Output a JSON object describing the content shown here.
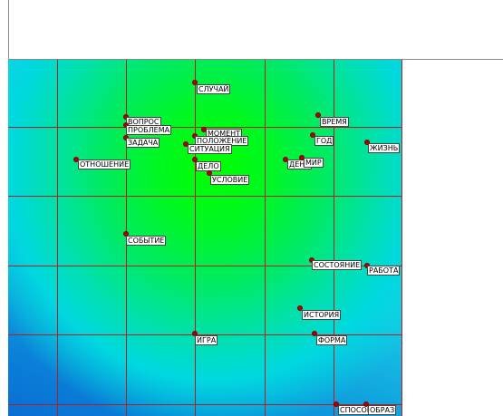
{
  "map": {
    "words": [
      {
        "text": "СЛУЧАЙ"
      },
      {
        "text": "ВОПРОС"
      },
      {
        "text": "ПРОБЛЕМА"
      },
      {
        "text": "ЗАДАЧА"
      },
      {
        "text": "МОМЕНТ"
      },
      {
        "text": "ПОЛОЖЕНИЕ"
      },
      {
        "text": "СИТУАЦИЯ"
      },
      {
        "text": "ВРЕМЯ"
      },
      {
        "text": "ГОД"
      },
      {
        "text": "ЖИЗНЬ"
      },
      {
        "text": "ОТНОШЕНИЕ"
      },
      {
        "text": "ДЕЛО"
      },
      {
        "text": "ДЕНЬ"
      },
      {
        "text": "МИР"
      },
      {
        "text": "УСЛОВИЕ"
      },
      {
        "text": "СОБЫТИЕ"
      },
      {
        "text": "СОСТОЯНИЕ"
      },
      {
        "text": "РАБОТА"
      },
      {
        "text": "ИСТОРИЯ"
      },
      {
        "text": "ИГРА"
      },
      {
        "text": "ФОРМА"
      },
      {
        "text": "СПОСОБ"
      },
      {
        "text": "ОБРАЗ"
      }
    ]
  }
}
